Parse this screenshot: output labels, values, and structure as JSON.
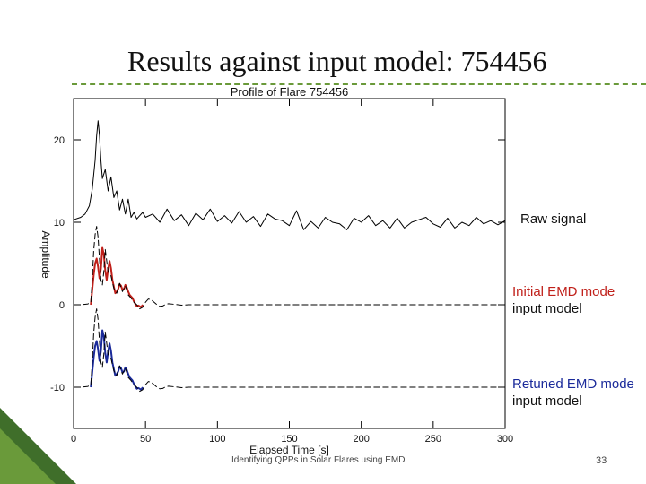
{
  "slide": {
    "title": "Results against input model: 754456",
    "footer": "Identifying QPPs in Solar Flares using EMD",
    "page_number": "33",
    "accent_color": "#6a9a3a"
  },
  "labels": {
    "raw": "Raw signal",
    "initial_line1": "Initial EMD mode",
    "initial_line2": "input model",
    "retuned_line1": "Retuned EMD mode",
    "retuned_line2": "input model"
  },
  "chart_data": {
    "type": "line",
    "title": "Profile of Flare 754456",
    "xlabel": "Elapsed Time [s]",
    "ylabel": "Amplitude",
    "xlim": [
      0,
      300
    ],
    "ylim": [
      -15,
      25
    ],
    "x_ticks": [
      "0",
      "50",
      "100",
      "150",
      "200",
      "250",
      "300"
    ],
    "y_ticks": [
      "-10",
      "0",
      "10",
      "20"
    ],
    "series": [
      {
        "name": "Raw signal",
        "color": "#000000",
        "style": "solid",
        "x": [
          0,
          5,
          8,
          11,
          13,
          15,
          16,
          17,
          18,
          19,
          20,
          22,
          24,
          26,
          28,
          30,
          32,
          34,
          36,
          38,
          40,
          42,
          44,
          46,
          48,
          50,
          55,
          60,
          65,
          70,
          75,
          80,
          85,
          90,
          95,
          100,
          105,
          110,
          115,
          120,
          125,
          130,
          135,
          140,
          145,
          150,
          155,
          160,
          165,
          170,
          175,
          180,
          185,
          190,
          195,
          200,
          205,
          210,
          215,
          220,
          225,
          230,
          235,
          240,
          245,
          250,
          255,
          260,
          265,
          270,
          275,
          280,
          285,
          290,
          295,
          300
        ],
        "y": [
          10.3,
          10.6,
          11.0,
          12.0,
          14.0,
          17.5,
          20.5,
          22.3,
          20.5,
          17.5,
          15.3,
          16.4,
          13.8,
          15.5,
          13.0,
          13.8,
          11.5,
          12.8,
          11.0,
          12.8,
          10.6,
          11.2,
          10.4,
          10.8,
          11.2,
          10.6,
          11.0,
          10.0,
          11.6,
          10.2,
          10.9,
          9.6,
          11.1,
          10.3,
          11.6,
          10.1,
          10.8,
          9.9,
          11.3,
          10.0,
          10.7,
          9.5,
          11.0,
          10.4,
          10.2,
          9.6,
          11.4,
          9.1,
          10.1,
          9.3,
          10.6,
          10.0,
          9.8,
          9.1,
          10.5,
          10.0,
          10.8,
          9.6,
          10.2,
          9.3,
          10.5,
          9.3,
          10.0,
          10.3,
          10.6,
          9.8,
          9.4,
          10.5,
          9.3,
          10.0,
          9.6,
          10.6,
          9.8,
          10.2,
          9.7,
          10.2
        ]
      },
      {
        "name": "Initial EMD mode",
        "color": "#c0201a",
        "style": "solid",
        "x": [
          12,
          13,
          14,
          15,
          16,
          17,
          18,
          19,
          20,
          21,
          22,
          23,
          24,
          25,
          26,
          27,
          28,
          29,
          30,
          31,
          32,
          33,
          34,
          35,
          36,
          37,
          38,
          39,
          40,
          41,
          42,
          43,
          44,
          45,
          46,
          47,
          48
        ],
        "y": [
          0.0,
          1.8,
          3.6,
          5.0,
          5.6,
          4.6,
          3.2,
          4.4,
          6.9,
          6.1,
          4.2,
          3.0,
          4.3,
          5.3,
          4.4,
          3.0,
          2.2,
          1.4,
          1.6,
          1.9,
          2.5,
          2.3,
          1.8,
          1.9,
          2.4,
          2.1,
          1.6,
          1.2,
          1.0,
          0.8,
          0.4,
          0.1,
          -0.2,
          -0.1,
          -0.2,
          -0.3,
          0.0
        ]
      },
      {
        "name": "Initial EMD input model",
        "color": "#000000",
        "style": "dashed",
        "x": [
          0,
          5,
          8,
          10,
          12,
          13,
          14,
          15,
          16,
          17,
          18,
          19,
          20,
          21,
          22,
          24,
          26,
          28,
          30,
          32,
          34,
          36,
          38,
          40,
          42,
          44,
          46,
          48,
          50,
          52,
          54,
          56,
          58,
          60,
          62,
          64,
          66,
          70,
          75,
          80,
          90,
          100,
          300
        ],
        "y": [
          0.0,
          0.0,
          0.05,
          0.1,
          0.3,
          3.0,
          6.5,
          8.5,
          9.5,
          8.2,
          5.5,
          3.0,
          2.4,
          4.0,
          6.7,
          4.0,
          3.5,
          2.0,
          1.4,
          2.6,
          1.6,
          2.3,
          1.2,
          0.8,
          0.3,
          0.0,
          -0.5,
          -0.3,
          0.3,
          0.7,
          0.6,
          0.3,
          0.0,
          -0.2,
          -0.15,
          0.05,
          0.12,
          0.05,
          -0.05,
          0.0,
          0.0,
          0.0,
          0.0
        ]
      },
      {
        "name": "Retuned EMD mode",
        "color": "#1a2a9a",
        "style": "solid",
        "x": [
          12,
          13,
          14,
          15,
          16,
          17,
          18,
          19,
          20,
          21,
          22,
          23,
          24,
          25,
          26,
          27,
          28,
          29,
          30,
          31,
          32,
          33,
          34,
          35,
          36,
          37,
          38,
          39,
          40,
          41,
          42,
          43,
          44,
          45,
          46,
          47,
          48
        ],
        "y": [
          -10.0,
          -8.2,
          -6.4,
          -5.0,
          -4.4,
          -5.4,
          -6.8,
          -5.6,
          -3.1,
          -3.9,
          -5.8,
          -7.0,
          -5.7,
          -4.7,
          -5.6,
          -7.0,
          -7.8,
          -8.6,
          -8.4,
          -8.1,
          -7.5,
          -7.7,
          -8.2,
          -8.1,
          -7.6,
          -7.9,
          -8.4,
          -8.8,
          -9.0,
          -9.2,
          -9.6,
          -9.9,
          -10.2,
          -10.1,
          -10.2,
          -10.3,
          -10.0
        ]
      },
      {
        "name": "Retuned EMD input model",
        "color": "#000000",
        "style": "dashed",
        "x": [
          0,
          5,
          8,
          10,
          12,
          13,
          14,
          15,
          16,
          17,
          18,
          19,
          20,
          21,
          22,
          24,
          26,
          28,
          30,
          32,
          34,
          36,
          38,
          40,
          42,
          44,
          46,
          48,
          50,
          52,
          54,
          56,
          58,
          60,
          62,
          64,
          66,
          70,
          75,
          80,
          90,
          100,
          300
        ],
        "y": [
          -10.0,
          -10.0,
          -9.95,
          -9.9,
          -9.7,
          -7.0,
          -3.5,
          -1.5,
          -0.5,
          -1.8,
          -4.5,
          -7.0,
          -7.6,
          -6.0,
          -3.3,
          -6.0,
          -6.5,
          -8.0,
          -8.6,
          -7.4,
          -8.4,
          -7.7,
          -8.8,
          -9.2,
          -9.7,
          -10.0,
          -10.5,
          -10.3,
          -9.7,
          -9.3,
          -9.4,
          -9.7,
          -10.0,
          -10.2,
          -10.15,
          -9.95,
          -9.88,
          -9.95,
          -10.05,
          -10.0,
          -10.0,
          -10.0,
          -10.0
        ]
      }
    ]
  }
}
